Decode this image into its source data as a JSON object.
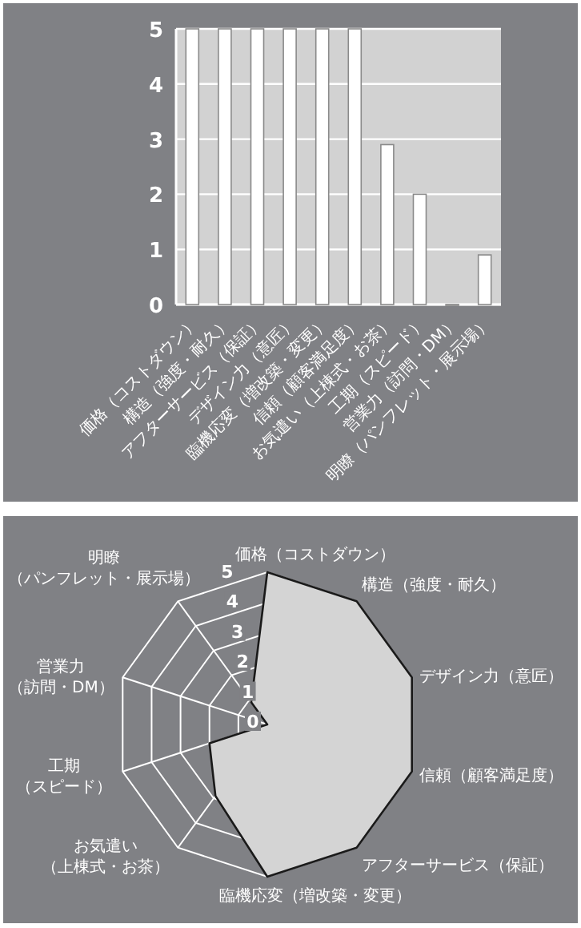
{
  "chart_data": [
    {
      "type": "bar",
      "categories": [
        "価格（コストダウン）",
        "構造（強度・耐久）",
        "アフターサービス（保証）",
        "デザイン力（意匠）",
        "臨機応変（増改築・変更）",
        "信頼（顧客満足度）",
        "お気遣い（上棟式・お茶）",
        "工期（スピード）",
        "営業力（訪問・DM）",
        "明瞭（パンフレット・展示場）"
      ],
      "values": [
        5,
        5,
        5,
        5,
        5,
        5,
        2.9,
        2,
        0,
        0.9
      ],
      "color": "#ffffff",
      "ylim": [
        0,
        5
      ],
      "yticks": [
        0,
        1,
        2,
        3,
        4,
        5
      ],
      "grid": "y"
    },
    {
      "type": "radar",
      "categories": [
        "価格（コストダウン）",
        "構造（強度・耐久）",
        "デザイン力（意匠）",
        "信頼（顧客満足度）",
        "アフターサービス（保証）",
        "臨機応変（増改築・変更）",
        "お気遣い（上棟式・お茶）",
        "工期（スピード）",
        "営業力（訪問・DM）",
        "明瞭（パンフレット・展示場）"
      ],
      "values": [
        5,
        5,
        5,
        5,
        5,
        5,
        2.9,
        2,
        0,
        0.9
      ],
      "color": "#d4d4d4",
      "ylim": [
        0,
        5
      ],
      "yticks": [
        0,
        1,
        2,
        3,
        4,
        5
      ],
      "grid": true
    }
  ]
}
